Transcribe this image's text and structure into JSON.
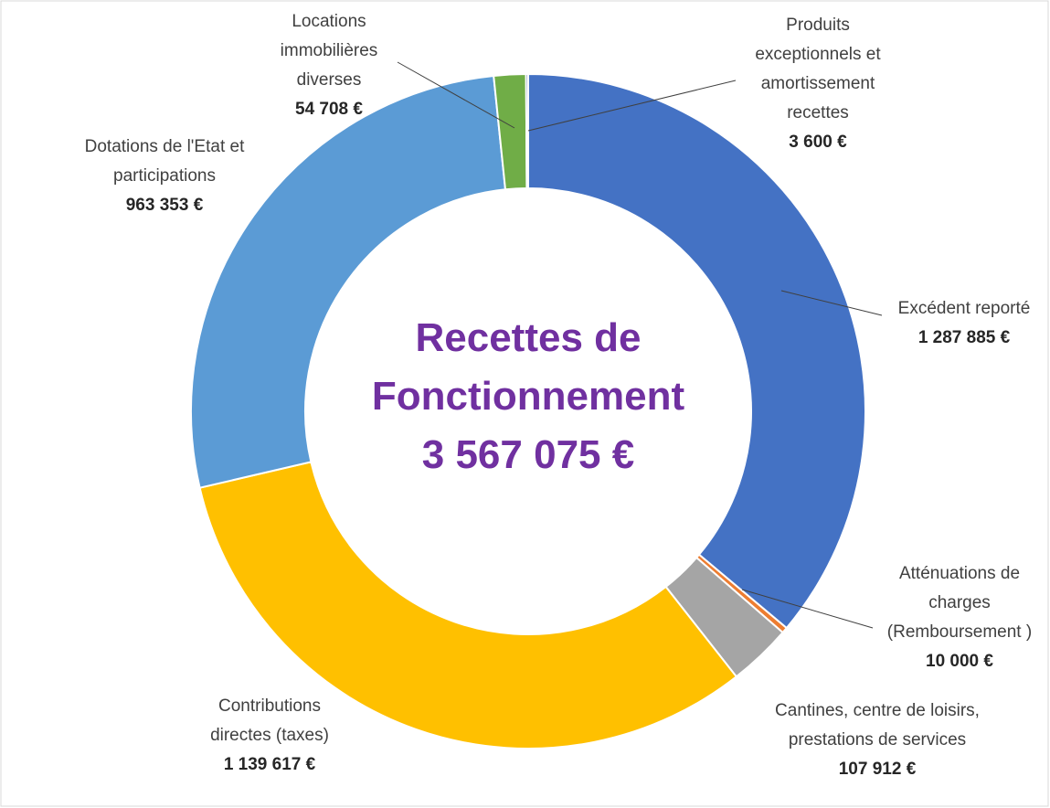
{
  "chart_data": {
    "type": "donut",
    "title": "Recettes de Fonctionnement",
    "total": {
      "value": 3567075,
      "label": "3 567 075 €"
    },
    "categories": [
      "Excédent reporté",
      "Atténuations de charges (Remboursement )",
      "Cantines, centre de loisirs, prestations de services",
      "Contributions directes (taxes)",
      "Dotations de l'Etat et participations",
      "Locations immobilières diverses",
      "Produits exceptionnels et amortissement recettes"
    ],
    "values": [
      1287885,
      10000,
      107912,
      1139617,
      963353,
      54708,
      3600
    ],
    "value_labels": [
      "1 287 885 €",
      "10 000 €",
      "107 912 €",
      "1 139 617 €",
      "963 353 €",
      "54 708 €",
      "3 600 €"
    ],
    "colors": [
      "#4472c4",
      "#ed7d31",
      "#a5a5a5",
      "#ffc000",
      "#5b9bd5",
      "#70ad47",
      "#264478"
    ]
  }
}
